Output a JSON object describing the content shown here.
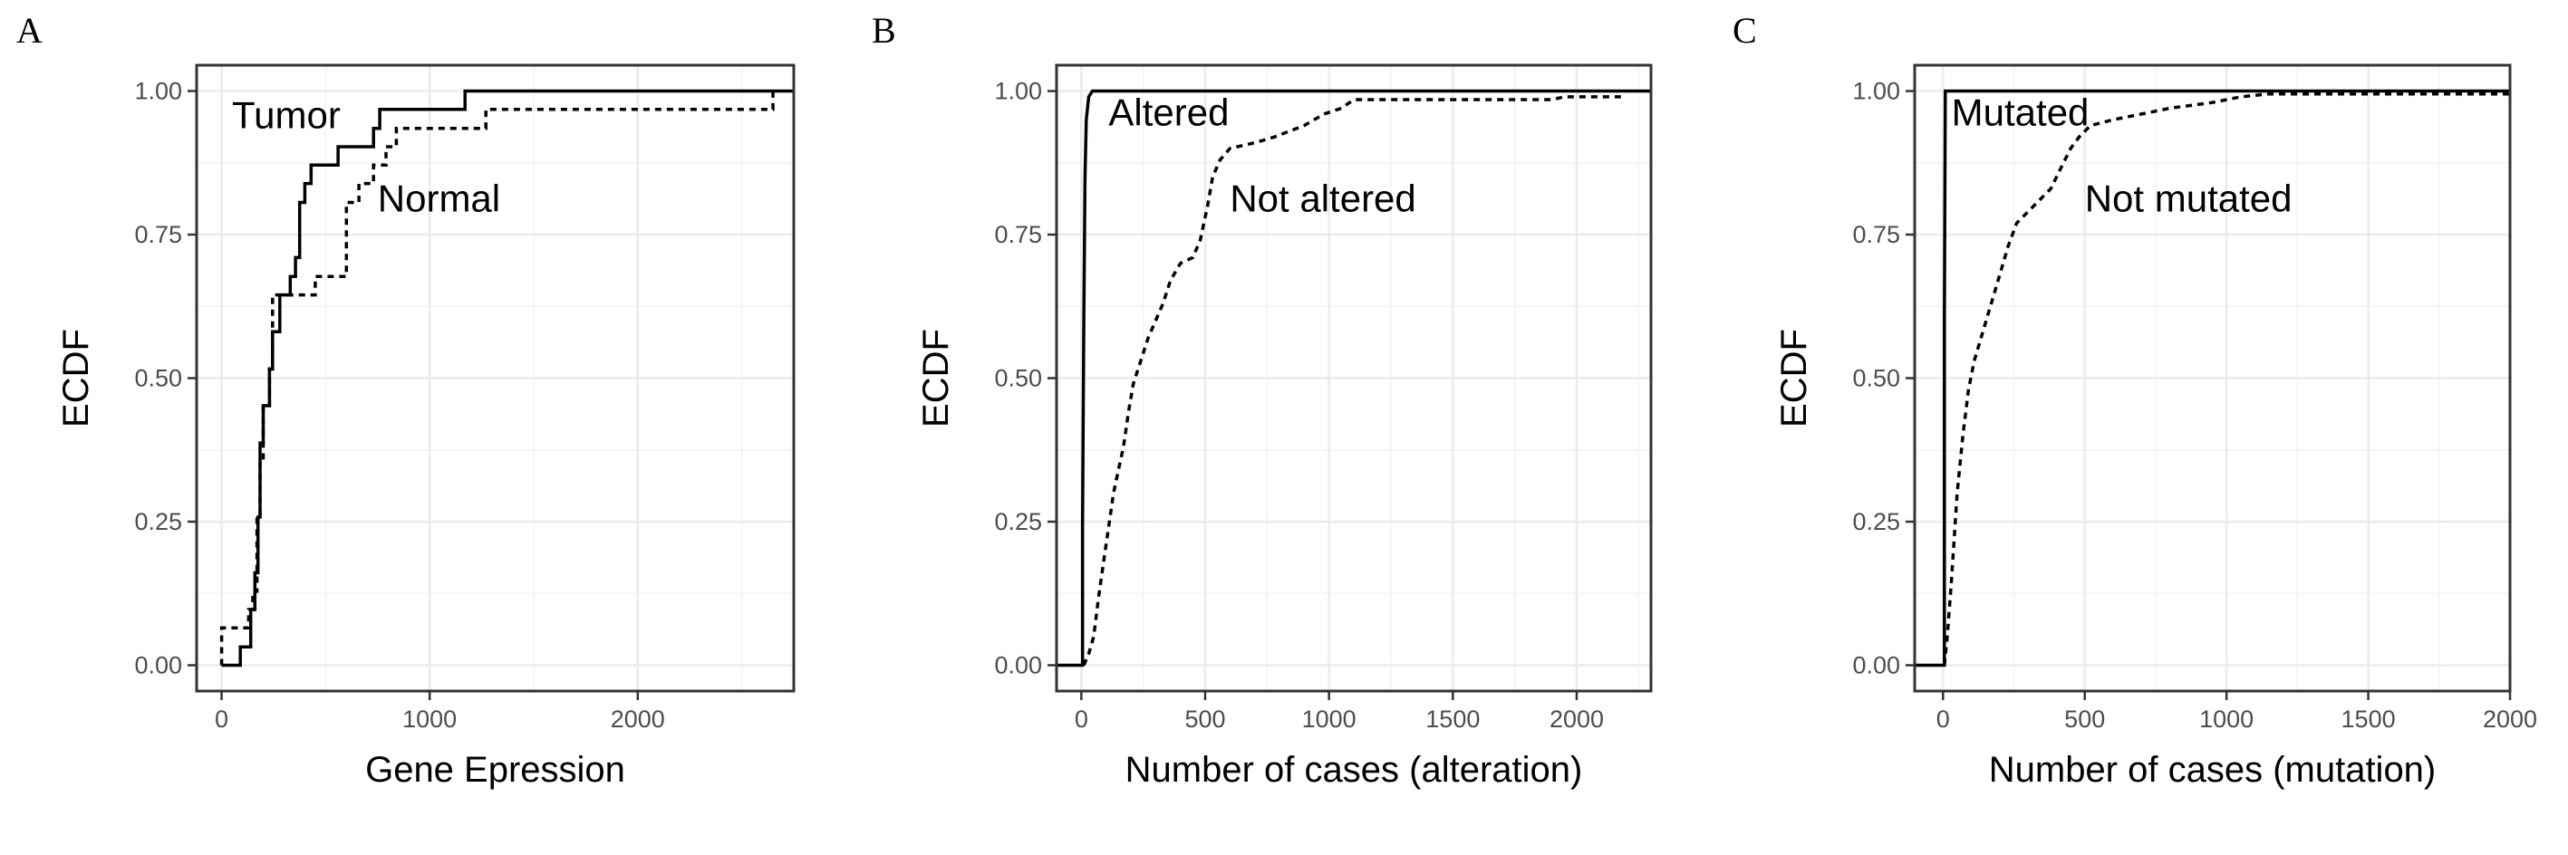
{
  "chart_data": [
    {
      "type": "line",
      "panel_label": "A",
      "xlabel": "Gene Epression",
      "ylabel": "ECDF",
      "xlim": [
        -120,
        2750
      ],
      "ylim": [
        -0.045,
        1.045
      ],
      "xticks": [
        0,
        1000,
        2000
      ],
      "yticks": [
        0,
        0.25,
        0.5,
        0.75,
        1.0
      ],
      "ytick_labels": [
        "0.00",
        "0.25",
        "0.50",
        "0.75",
        "1.00"
      ],
      "grid": true,
      "series": [
        {
          "name": "Tumor",
          "style": "solid",
          "points": [
            [
              0,
              0
            ],
            [
              90,
              0
            ],
            [
              90,
              0.032
            ],
            [
              140,
              0.032
            ],
            [
              140,
              0.097
            ],
            [
              160,
              0.097
            ],
            [
              160,
              0.161
            ],
            [
              175,
              0.161
            ],
            [
              175,
              0.258
            ],
            [
              185,
              0.258
            ],
            [
              185,
              0.387
            ],
            [
              200,
              0.387
            ],
            [
              200,
              0.452
            ],
            [
              230,
              0.452
            ],
            [
              230,
              0.516
            ],
            [
              245,
              0.516
            ],
            [
              245,
              0.581
            ],
            [
              280,
              0.581
            ],
            [
              280,
              0.645
            ],
            [
              330,
              0.645
            ],
            [
              330,
              0.677
            ],
            [
              355,
              0.677
            ],
            [
              355,
              0.71
            ],
            [
              375,
              0.71
            ],
            [
              375,
              0.806
            ],
            [
              400,
              0.806
            ],
            [
              400,
              0.839
            ],
            [
              430,
              0.839
            ],
            [
              430,
              0.871
            ],
            [
              560,
              0.871
            ],
            [
              560,
              0.903
            ],
            [
              730,
              0.903
            ],
            [
              730,
              0.935
            ],
            [
              760,
              0.935
            ],
            [
              760,
              0.968
            ],
            [
              1170,
              0.968
            ],
            [
              1170,
              1.0
            ],
            [
              2750,
              1.0
            ]
          ]
        },
        {
          "name": "Normal",
          "style": "dashed",
          "points": [
            [
              0,
              0
            ],
            [
              0,
              0.065
            ],
            [
              130,
              0.065
            ],
            [
              130,
              0.097
            ],
            [
              150,
              0.097
            ],
            [
              150,
              0.129
            ],
            [
              170,
              0.129
            ],
            [
              170,
              0.258
            ],
            [
              185,
              0.258
            ],
            [
              185,
              0.355
            ],
            [
              200,
              0.355
            ],
            [
              200,
              0.452
            ],
            [
              230,
              0.452
            ],
            [
              230,
              0.516
            ],
            [
              245,
              0.516
            ],
            [
              245,
              0.645
            ],
            [
              450,
              0.645
            ],
            [
              450,
              0.677
            ],
            [
              600,
              0.677
            ],
            [
              600,
              0.806
            ],
            [
              660,
              0.806
            ],
            [
              660,
              0.839
            ],
            [
              730,
              0.839
            ],
            [
              730,
              0.871
            ],
            [
              790,
              0.871
            ],
            [
              790,
              0.903
            ],
            [
              840,
              0.903
            ],
            [
              840,
              0.935
            ],
            [
              1270,
              0.935
            ],
            [
              1270,
              0.968
            ],
            [
              2650,
              0.968
            ],
            [
              2650,
              1.0
            ]
          ]
        }
      ],
      "annotations": [
        {
          "text": "Tumor",
          "x": 50,
          "y": 0.935
        },
        {
          "text": "Normal",
          "x": 750,
          "y": 0.79
        }
      ]
    },
    {
      "type": "line",
      "panel_label": "B",
      "xlabel": "Number of cases (alteration)",
      "ylabel": "ECDF",
      "xlim": [
        -100,
        2300
      ],
      "ylim": [
        -0.045,
        1.045
      ],
      "xticks": [
        0,
        500,
        1000,
        1500,
        2000
      ],
      "yticks": [
        0,
        0.25,
        0.5,
        0.75,
        1.0
      ],
      "ytick_labels": [
        "0.00",
        "0.25",
        "0.50",
        "0.75",
        "1.00"
      ],
      "grid": true,
      "series": [
        {
          "name": "Altered",
          "style": "solid",
          "points": [
            [
              -100,
              0
            ],
            [
              5,
              0
            ],
            [
              5,
              0.25
            ],
            [
              10,
              0.6
            ],
            [
              15,
              0.85
            ],
            [
              20,
              0.95
            ],
            [
              30,
              0.99
            ],
            [
              45,
              1.0
            ],
            [
              2300,
              1.0
            ]
          ]
        },
        {
          "name": "Not altered",
          "style": "dashed",
          "points": [
            [
              10,
              0
            ],
            [
              30,
              0.02
            ],
            [
              50,
              0.05
            ],
            [
              70,
              0.12
            ],
            [
              90,
              0.18
            ],
            [
              110,
              0.24
            ],
            [
              130,
              0.3
            ],
            [
              150,
              0.34
            ],
            [
              170,
              0.38
            ],
            [
              190,
              0.44
            ],
            [
              210,
              0.49
            ],
            [
              240,
              0.53
            ],
            [
              270,
              0.57
            ],
            [
              300,
              0.6
            ],
            [
              330,
              0.63
            ],
            [
              360,
              0.67
            ],
            [
              400,
              0.7
            ],
            [
              450,
              0.71
            ],
            [
              480,
              0.74
            ],
            [
              510,
              0.8
            ],
            [
              530,
              0.85
            ],
            [
              560,
              0.88
            ],
            [
              600,
              0.9
            ],
            [
              700,
              0.91
            ],
            [
              780,
              0.92
            ],
            [
              900,
              0.94
            ],
            [
              980,
              0.96
            ],
            [
              1050,
              0.97
            ],
            [
              1100,
              0.985
            ],
            [
              1900,
              0.985
            ],
            [
              1950,
              0.99
            ],
            [
              2200,
              0.99
            ]
          ]
        }
      ],
      "annotations": [
        {
          "text": "Altered",
          "x": 110,
          "y": 0.94
        },
        {
          "text": "Not altered",
          "x": 600,
          "y": 0.79
        }
      ]
    },
    {
      "type": "line",
      "panel_label": "C",
      "xlabel": "Number of cases (mutation)",
      "ylabel": "ECDF",
      "xlim": [
        -100,
        2000
      ],
      "ylim": [
        -0.045,
        1.045
      ],
      "xticks": [
        0,
        500,
        1000,
        1500,
        2000
      ],
      "yticks": [
        0,
        0.25,
        0.5,
        0.75,
        1.0
      ],
      "ytick_labels": [
        "0.00",
        "0.25",
        "0.50",
        "0.75",
        "1.00"
      ],
      "grid": true,
      "series": [
        {
          "name": "Mutated",
          "style": "solid",
          "points": [
            [
              -100,
              0
            ],
            [
              5,
              0
            ],
            [
              5,
              0.6
            ],
            [
              8,
              1.0
            ],
            [
              2000,
              1.0
            ]
          ]
        },
        {
          "name": "Not mutated",
          "style": "dashed",
          "points": [
            [
              5,
              0
            ],
            [
              15,
              0.05
            ],
            [
              30,
              0.15
            ],
            [
              50,
              0.3
            ],
            [
              70,
              0.4
            ],
            [
              90,
              0.48
            ],
            [
              110,
              0.53
            ],
            [
              140,
              0.58
            ],
            [
              170,
              0.63
            ],
            [
              200,
              0.68
            ],
            [
              230,
              0.73
            ],
            [
              260,
              0.77
            ],
            [
              300,
              0.79
            ],
            [
              340,
              0.81
            ],
            [
              380,
              0.83
            ],
            [
              420,
              0.87
            ],
            [
              450,
              0.9
            ],
            [
              480,
              0.92
            ],
            [
              520,
              0.94
            ],
            [
              600,
              0.95
            ],
            [
              700,
              0.96
            ],
            [
              800,
              0.97
            ],
            [
              950,
              0.98
            ],
            [
              1050,
              0.99
            ],
            [
              1150,
              0.995
            ],
            [
              2000,
              0.995
            ]
          ]
        }
      ],
      "annotations": [
        {
          "text": "Mutated",
          "x": 30,
          "y": 0.94
        },
        {
          "text": "Not mutated",
          "x": 500,
          "y": 0.79
        }
      ]
    }
  ]
}
